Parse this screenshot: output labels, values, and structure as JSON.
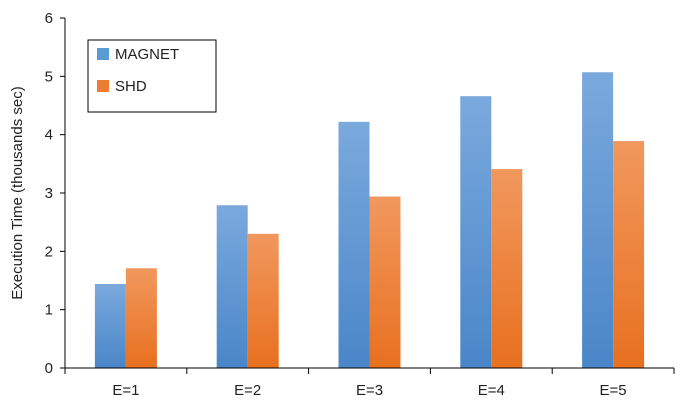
{
  "chart_data": {
    "type": "bar",
    "title": "",
    "xlabel": "",
    "ylabel": "Execution Time (thousands sec)",
    "categories": [
      "E=1",
      "E=2",
      "E=3",
      "E=4",
      "E=5"
    ],
    "series": [
      {
        "name": "MAGNET",
        "values": [
          1.44,
          2.79,
          4.22,
          4.66,
          5.07
        ],
        "color": "#5B9BD5"
      },
      {
        "name": "SHD",
        "values": [
          1.71,
          2.3,
          2.94,
          3.41,
          3.89
        ],
        "color": "#ED7D31"
      }
    ],
    "ylim": [
      0,
      6
    ],
    "yticks": [
      "0",
      "1",
      "2",
      "3",
      "4",
      "5",
      "6"
    ],
    "grid": false,
    "legend_position": "top-left"
  }
}
